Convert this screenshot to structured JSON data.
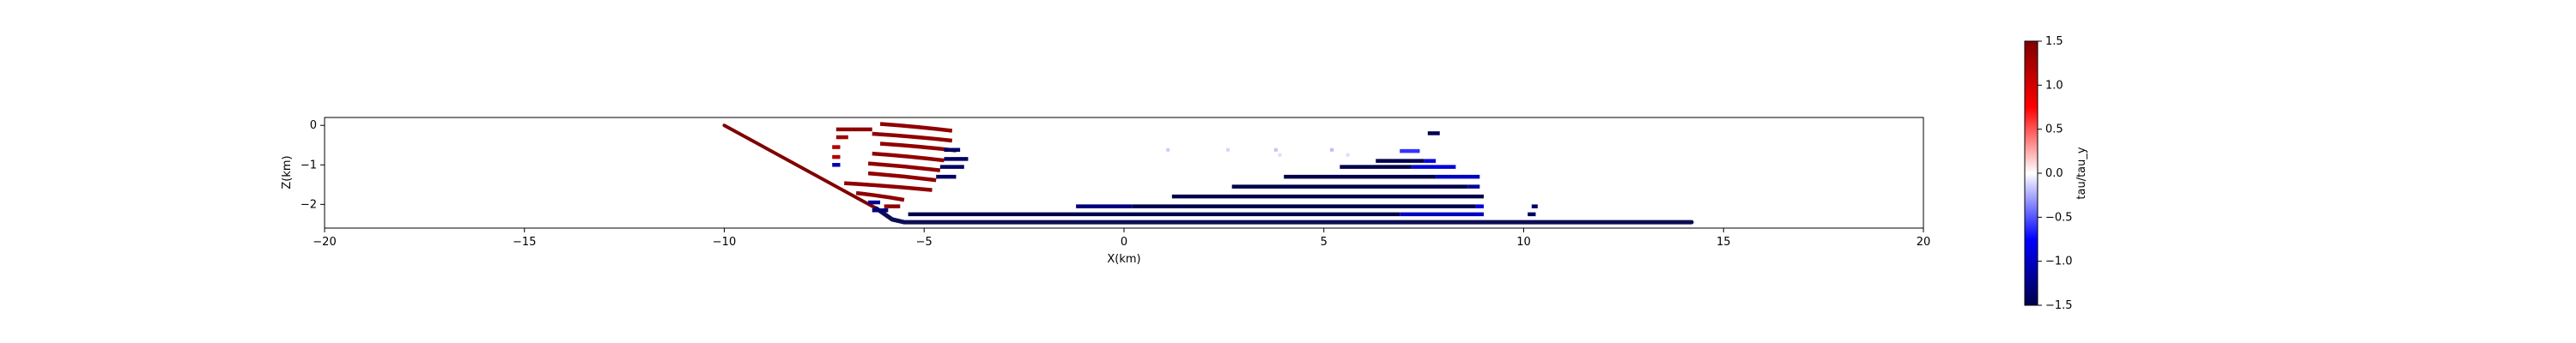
{
  "chart_data": {
    "type": "scatter",
    "title": "",
    "xlabel": "X(km)",
    "ylabel": "Z(km)",
    "xlim": [
      -20,
      20
    ],
    "ylim": [
      -2.6,
      0.2
    ],
    "xticks": [
      "−20",
      "−15",
      "−10",
      "−5",
      "0",
      "5",
      "10",
      "15",
      "20"
    ],
    "xtick_values": [
      -20,
      -15,
      -10,
      -5,
      0,
      5,
      10,
      15,
      20
    ],
    "yticks": [
      "0",
      "−1",
      "−2"
    ],
    "ytick_values": [
      0,
      -1,
      -2
    ],
    "grid": false,
    "colormap": "seismic",
    "colorbar": {
      "label": "tau/tau_y",
      "range": [
        -1.5,
        1.5
      ],
      "ticks": [
        "1.5",
        "1.0",
        "0.5",
        "0.0",
        "−0.5",
        "−1.0",
        "−1.5"
      ],
      "tick_values": [
        1.5,
        1.0,
        0.5,
        0.0,
        -0.5,
        -1.0,
        -1.5
      ],
      "stops": [
        "#00004c",
        "#0000ff",
        "#ffffff",
        "#ff0000",
        "#7f0000"
      ]
    },
    "fault": {
      "name": "",
      "color_upper": "#7f0000",
      "color_lower": "#0d0d55",
      "points": [
        [
          -10,
          0
        ],
        [
          -6.2,
          -2.1
        ],
        [
          -5.8,
          -2.38
        ],
        [
          -5.5,
          -2.45
        ],
        [
          14.2,
          -2.45
        ]
      ]
    },
    "series": [
      {
        "z": -0.1,
        "x0": -7.2,
        "x1": -6.3,
        "value": 1.4
      },
      {
        "z": -0.05,
        "x0": -6.1,
        "x1": -4.3,
        "value": 1.4,
        "curve": true
      },
      {
        "z": -0.3,
        "x0": -7.2,
        "x1": -6.9,
        "value": 1.3
      },
      {
        "z": -0.3,
        "x0": -6.3,
        "x1": -4.3,
        "value": 1.4,
        "curve": true
      },
      {
        "z": -0.55,
        "x0": -7.3,
        "x1": -7.1,
        "value": 1.2
      },
      {
        "z": -0.55,
        "x0": -6.1,
        "x1": -4.2,
        "value": 1.4,
        "curve": true
      },
      {
        "z": -0.62,
        "x0": -4.5,
        "x1": -4.1,
        "value": -1.4
      },
      {
        "z": -0.8,
        "x0": -7.3,
        "x1": -7.1,
        "value": 1.2
      },
      {
        "z": -0.8,
        "x0": -6.3,
        "x1": -4.5,
        "value": 1.4,
        "curve": true
      },
      {
        "z": -0.85,
        "x0": -4.5,
        "x1": -3.9,
        "value": -1.4
      },
      {
        "z": -1.0,
        "x0": -7.3,
        "x1": -7.1,
        "value": -1.1
      },
      {
        "z": -1.05,
        "x0": -6.4,
        "x1": -4.6,
        "value": 1.4,
        "curve": true
      },
      {
        "z": -1.05,
        "x0": -4.6,
        "x1": -4.0,
        "value": -1.4
      },
      {
        "z": -1.3,
        "x0": -6.4,
        "x1": -4.7,
        "value": 1.4,
        "curve": true
      },
      {
        "z": -1.3,
        "x0": -4.7,
        "x1": -4.2,
        "value": -1.4
      },
      {
        "z": -1.55,
        "x0": -7.0,
        "x1": -4.8,
        "value": 1.4,
        "curve": true
      },
      {
        "z": -1.8,
        "x0": -6.7,
        "x1": -5.5,
        "value": 1.4,
        "curve": true
      },
      {
        "z": -1.95,
        "x0": -6.4,
        "x1": -6.1,
        "value": -1.2
      },
      {
        "z": -2.05,
        "x0": -6.0,
        "x1": -5.6,
        "value": 1.4
      },
      {
        "z": -2.15,
        "x0": -6.3,
        "x1": -5.9,
        "value": -1.3
      },
      {
        "z": -0.2,
        "x0": 7.6,
        "x1": 7.9,
        "value": -1.5
      },
      {
        "z": -0.65,
        "x0": 6.9,
        "x1": 7.4,
        "value": -0.6
      },
      {
        "z": -0.9,
        "x0": 6.3,
        "x1": 7.5,
        "value": -1.5
      },
      {
        "z": -0.9,
        "x0": 7.5,
        "x1": 7.8,
        "value": -0.9
      },
      {
        "z": -1.05,
        "x0": 5.4,
        "x1": 7.2,
        "value": -1.5
      },
      {
        "z": -1.05,
        "x0": 7.2,
        "x1": 8.3,
        "value": -0.9
      },
      {
        "z": -1.3,
        "x0": 4.0,
        "x1": 7.8,
        "value": -1.5
      },
      {
        "z": -1.3,
        "x0": 7.8,
        "x1": 8.9,
        "value": -1.0
      },
      {
        "z": -1.55,
        "x0": 2.7,
        "x1": 8.6,
        "value": -1.5
      },
      {
        "z": -1.55,
        "x0": 8.6,
        "x1": 8.9,
        "value": -1.2
      },
      {
        "z": -1.8,
        "x0": 1.2,
        "x1": 9.0,
        "value": -1.5
      },
      {
        "z": -2.05,
        "x0": -1.2,
        "x1": 0.2,
        "value": -1.3
      },
      {
        "z": -2.05,
        "x0": 0.2,
        "x1": 8.8,
        "value": -1.5
      },
      {
        "z": -2.05,
        "x0": 8.8,
        "x1": 9.0,
        "value": -0.9
      },
      {
        "z": -2.05,
        "x0": 10.2,
        "x1": 10.35,
        "value": -1.4
      },
      {
        "z": -2.25,
        "x0": -5.4,
        "x1": 6.9,
        "value": -1.5
      },
      {
        "z": -2.25,
        "x0": 6.9,
        "x1": 9.0,
        "value": -1.0
      },
      {
        "z": -2.25,
        "x0": 10.1,
        "x1": 10.3,
        "value": -1.4
      }
    ],
    "faint_points": [
      [
        1.1,
        -0.62,
        -0.3
      ],
      [
        2.6,
        -0.62,
        -0.25
      ],
      [
        3.8,
        -0.62,
        -0.35
      ],
      [
        5.2,
        -0.62,
        -0.4
      ],
      [
        3.9,
        -0.75,
        -0.2
      ],
      [
        5.6,
        -0.75,
        -0.2
      ]
    ]
  }
}
